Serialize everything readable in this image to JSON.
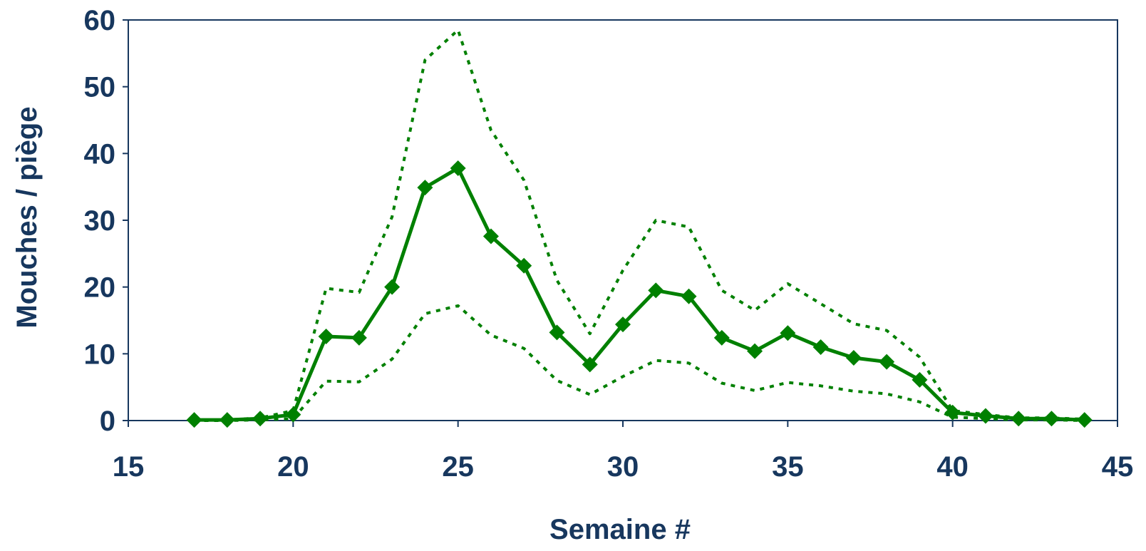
{
  "chart_data": {
    "type": "line",
    "title": "",
    "xlabel": "Semaine #",
    "ylabel": "Mouches / piège",
    "xlim": [
      15,
      45
    ],
    "ylim": [
      0,
      60
    ],
    "xticks": [
      15,
      20,
      25,
      30,
      35,
      40,
      45
    ],
    "yticks": [
      0,
      10,
      20,
      30,
      40,
      50,
      60
    ],
    "grid": false,
    "legend": "none",
    "series": [
      {
        "style": "solid-with-diamond-markers",
        "color": "#008000",
        "x": [
          17,
          18,
          19,
          20,
          21,
          22,
          23,
          24,
          25,
          26,
          27,
          28,
          29,
          30,
          31,
          32,
          33,
          34,
          35,
          36,
          37,
          38,
          39,
          40,
          41,
          42,
          43,
          44
        ],
        "values": [
          0.1,
          0.1,
          0.3,
          0.9,
          12.6,
          12.4,
          20.0,
          34.9,
          37.8,
          27.6,
          23.2,
          13.2,
          8.4,
          14.4,
          19.5,
          18.6,
          12.4,
          10.4,
          13.1,
          11.0,
          9.4,
          8.8,
          6.1,
          1.2,
          0.7,
          0.3,
          0.3,
          0.1
        ]
      },
      {
        "style": "dotted-upper",
        "color": "#008000",
        "x": [
          17,
          18,
          19,
          20,
          21,
          22,
          23,
          24,
          25,
          26,
          27,
          28,
          29,
          30,
          31,
          32,
          33,
          34,
          35,
          36,
          37,
          38,
          39,
          40,
          41,
          42,
          43,
          44
        ],
        "values": [
          0.1,
          0.1,
          0.4,
          1.5,
          19.8,
          19.2,
          30.5,
          54.0,
          58.5,
          43.5,
          36.0,
          21.0,
          13.0,
          22.5,
          30.0,
          29.0,
          19.5,
          16.5,
          20.5,
          17.5,
          14.5,
          13.5,
          9.5,
          1.5,
          0.9,
          0.4,
          0.4,
          0.2
        ]
      },
      {
        "style": "dotted-lower",
        "color": "#008000",
        "x": [
          17,
          18,
          19,
          20,
          21,
          22,
          23,
          24,
          25,
          26,
          27,
          28,
          29,
          30,
          31,
          32,
          33,
          34,
          35,
          36,
          37,
          38,
          39,
          40,
          41,
          42,
          43,
          44
        ],
        "values": [
          0.0,
          0.0,
          0.1,
          0.3,
          5.9,
          5.8,
          9.2,
          16.0,
          17.2,
          12.8,
          10.8,
          6.0,
          3.9,
          6.6,
          9.0,
          8.6,
          5.6,
          4.5,
          5.7,
          5.2,
          4.4,
          4.0,
          2.8,
          0.5,
          0.3,
          0.1,
          0.1,
          0.0
        ]
      }
    ]
  }
}
